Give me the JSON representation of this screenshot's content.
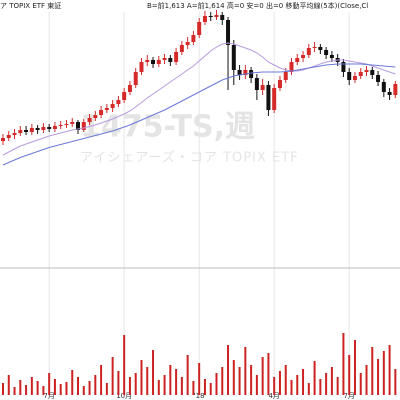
{
  "chart_data": {
    "type": "candlestick",
    "header": {
      "name": "ア TOPIX ETF 東証",
      "quote": "B=前1,613 A=前1,614 高=0 安=0 出=0 移動平均線(5本)(Close,Cl"
    },
    "watermark": {
      "code": "1475-TS,週",
      "name": "アイシェアーズ・コア TOPIX ETF"
    },
    "categories": [
      null,
      null,
      null,
      null,
      null,
      null,
      null,
      null,
      "7月",
      null,
      null,
      null,
      null,
      null,
      null,
      null,
      null,
      null,
      null,
      null,
      null,
      "10月",
      null,
      null,
      null,
      null,
      null,
      null,
      null,
      null,
      null,
      null,
      null,
      null,
      "'18",
      null,
      null,
      null,
      null,
      null,
      null,
      null,
      null,
      null,
      null,
      null,
      null,
      "4月",
      null,
      null,
      null,
      null,
      null,
      null,
      null,
      null,
      null,
      null,
      null,
      null,
      "7月",
      null,
      null,
      null,
      null,
      null,
      null,
      null,
      null
    ],
    "ylim": [
      1300,
      1820
    ],
    "volume_ylim": [
      0,
      100
    ],
    "colors": {
      "up": "#d42a2a",
      "down": "#111111",
      "volume": "#cc2222"
    },
    "ohlc": [
      [
        1548,
        1562,
        1540,
        1554
      ],
      [
        1554,
        1568,
        1548,
        1560
      ],
      [
        1560,
        1572,
        1552,
        1564
      ],
      [
        1564,
        1578,
        1558,
        1570
      ],
      [
        1570,
        1578,
        1560,
        1566
      ],
      [
        1566,
        1582,
        1560,
        1574
      ],
      [
        1574,
        1580,
        1562,
        1570
      ],
      [
        1570,
        1584,
        1564,
        1576
      ],
      [
        1576,
        1582,
        1566,
        1572
      ],
      [
        1572,
        1586,
        1566,
        1578
      ],
      [
        1578,
        1588,
        1572,
        1580
      ],
      [
        1580,
        1590,
        1574,
        1582
      ],
      [
        1582,
        1594,
        1576,
        1586
      ],
      [
        1586,
        1590,
        1562,
        1570
      ],
      [
        1570,
        1592,
        1566,
        1586
      ],
      [
        1586,
        1602,
        1580,
        1594
      ],
      [
        1594,
        1608,
        1588,
        1600
      ],
      [
        1600,
        1618,
        1594,
        1610
      ],
      [
        1610,
        1622,
        1604,
        1614
      ],
      [
        1614,
        1630,
        1606,
        1622
      ],
      [
        1622,
        1638,
        1616,
        1630
      ],
      [
        1630,
        1654,
        1624,
        1646
      ],
      [
        1646,
        1668,
        1640,
        1660
      ],
      [
        1660,
        1694,
        1654,
        1686
      ],
      [
        1686,
        1714,
        1680,
        1706
      ],
      [
        1706,
        1720,
        1698,
        1710
      ],
      [
        1710,
        1716,
        1694,
        1702
      ],
      [
        1702,
        1718,
        1696,
        1710
      ],
      [
        1710,
        1722,
        1702,
        1714
      ],
      [
        1714,
        1720,
        1698,
        1706
      ],
      [
        1706,
        1734,
        1700,
        1726
      ],
      [
        1726,
        1748,
        1720,
        1740
      ],
      [
        1740,
        1756,
        1732,
        1746
      ],
      [
        1746,
        1768,
        1740,
        1760
      ],
      [
        1760,
        1794,
        1754,
        1786
      ],
      [
        1786,
        1808,
        1780,
        1798
      ],
      [
        1798,
        1806,
        1788,
        1796
      ],
      [
        1796,
        1810,
        1790,
        1800
      ],
      [
        1800,
        1806,
        1780,
        1790
      ],
      [
        1790,
        1796,
        1650,
        1740
      ],
      [
        1740,
        1750,
        1660,
        1690
      ],
      [
        1690,
        1700,
        1670,
        1680
      ],
      [
        1680,
        1700,
        1672,
        1690
      ],
      [
        1690,
        1696,
        1664,
        1674
      ],
      [
        1674,
        1682,
        1630,
        1650
      ],
      [
        1650,
        1672,
        1640,
        1660
      ],
      [
        1660,
        1668,
        1598,
        1610
      ],
      [
        1610,
        1662,
        1604,
        1654
      ],
      [
        1654,
        1678,
        1648,
        1670
      ],
      [
        1670,
        1694,
        1664,
        1686
      ],
      [
        1686,
        1714,
        1680,
        1706
      ],
      [
        1706,
        1722,
        1700,
        1714
      ],
      [
        1714,
        1728,
        1706,
        1720
      ],
      [
        1720,
        1742,
        1714,
        1734
      ],
      [
        1734,
        1746,
        1726,
        1736
      ],
      [
        1736,
        1742,
        1722,
        1730
      ],
      [
        1730,
        1736,
        1712,
        1720
      ],
      [
        1720,
        1728,
        1706,
        1714
      ],
      [
        1714,
        1722,
        1698,
        1706
      ],
      [
        1706,
        1712,
        1676,
        1686
      ],
      [
        1686,
        1694,
        1660,
        1670
      ],
      [
        1670,
        1686,
        1664,
        1678
      ],
      [
        1678,
        1694,
        1672,
        1686
      ],
      [
        1686,
        1698,
        1678,
        1690
      ],
      [
        1690,
        1696,
        1672,
        1680
      ],
      [
        1680,
        1688,
        1658,
        1666
      ],
      [
        1666,
        1672,
        1636,
        1646
      ],
      [
        1646,
        1654,
        1630,
        1640
      ],
      [
        1640,
        1668,
        1634,
        1662
      ]
    ],
    "lines": [
      {
        "color": "#b79be0",
        "values": [
          1520,
          1526,
          1532,
          1538,
          1542,
          1546,
          1550,
          1554,
          1558,
          1561,
          1564,
          1567,
          1570,
          1572,
          1574,
          1577,
          1580,
          1584,
          1588,
          1592,
          1597,
          1602,
          1608,
          1616,
          1625,
          1634,
          1642,
          1650,
          1658,
          1666,
          1674,
          1682,
          1690,
          1698,
          1708,
          1718,
          1728,
          1736,
          1742,
          1744,
          1742,
          1738,
          1734,
          1730,
          1724,
          1716,
          1706,
          1700,
          1694,
          1690,
          1688,
          1688,
          1690,
          1694,
          1698,
          1702,
          1706,
          1708,
          1710,
          1710,
          1708,
          1706,
          1704,
          1702,
          1698,
          1694,
          1690,
          1686,
          1682
        ]
      },
      {
        "color": "#6a78d8",
        "values": [
          1500,
          1505,
          1510,
          1515,
          1519,
          1523,
          1527,
          1531,
          1535,
          1538,
          1541,
          1544,
          1547,
          1550,
          1553,
          1556,
          1559,
          1562,
          1565,
          1568,
          1572,
          1576,
          1580,
          1585,
          1590,
          1595,
          1600,
          1605,
          1610,
          1616,
          1622,
          1628,
          1634,
          1640,
          1646,
          1652,
          1658,
          1664,
          1670,
          1674,
          1678,
          1680,
          1682,
          1684,
          1685,
          1686,
          1686,
          1686,
          1686,
          1687,
          1688,
          1690,
          1692,
          1694,
          1696,
          1698,
          1700,
          1701,
          1702,
          1702,
          1702,
          1702,
          1702,
          1701,
          1700,
          1699,
          1698,
          1697,
          1696
        ]
      }
    ],
    "volume": [
      12,
      20,
      8,
      15,
      10,
      18,
      14,
      9,
      22,
      16,
      11,
      13,
      25,
      18,
      9,
      14,
      20,
      30,
      12,
      38,
      24,
      60,
      18,
      22,
      35,
      28,
      45,
      15,
      20,
      30,
      26,
      18,
      40,
      14,
      32,
      16,
      12,
      22,
      28,
      50,
      35,
      28,
      48,
      30,
      20,
      38,
      42,
      18,
      24,
      30,
      15,
      20,
      26,
      12,
      34,
      16,
      22,
      28,
      18,
      62,
      40,
      55,
      22,
      30,
      48,
      36,
      44,
      50,
      26
    ],
    "grid": true
  }
}
